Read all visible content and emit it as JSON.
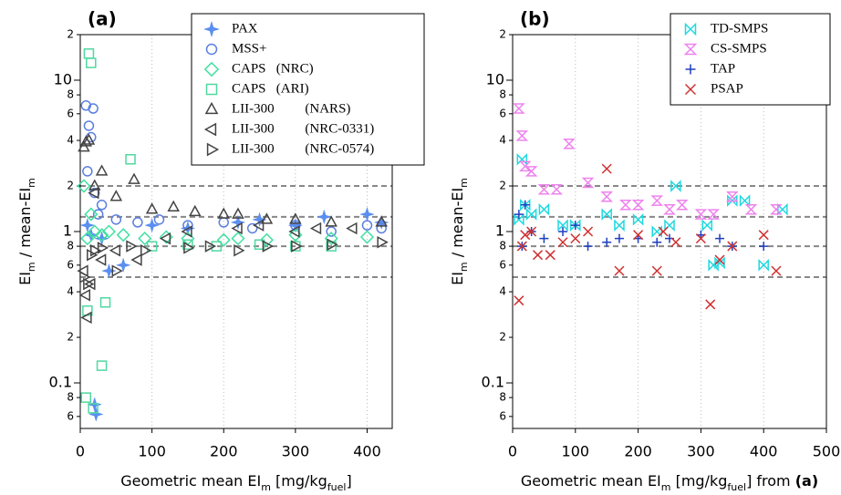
{
  "chart_data": [
    {
      "type": "scatter",
      "panel_label": "(a)",
      "log_y": true,
      "legend": "top-right",
      "ylabel": [
        {
          "text": "EI"
        },
        {
          "text": "m",
          "sub": true
        },
        {
          "text": " / mean-EI"
        },
        {
          "text": "m",
          "sub": true
        }
      ],
      "xlabel": [
        {
          "text": "Geometric mean EI"
        },
        {
          "text": "m",
          "sub": true
        },
        {
          "text": " [mg/kg"
        },
        {
          "text": "fuel",
          "sub": true
        },
        {
          "text": "]"
        }
      ],
      "xlim": [
        0,
        435
      ],
      "xticks": [
        0,
        100,
        200,
        300,
        400
      ],
      "ylim": [
        0.05,
        20
      ],
      "yticks": [
        {
          "value": 0.06,
          "label": "6"
        },
        {
          "value": 0.08,
          "label": "8"
        },
        0.1,
        {
          "value": 0.2,
          "label": "2"
        },
        {
          "value": 0.4,
          "label": "4"
        },
        {
          "value": 0.6,
          "label": "6"
        },
        {
          "value": 0.8,
          "label": "8"
        },
        1,
        {
          "value": 2,
          "label": "2"
        },
        {
          "value": 4,
          "label": "4"
        },
        {
          "value": 6,
          "label": "6"
        },
        {
          "value": 8,
          "label": "8"
        },
        10,
        {
          "value": 20,
          "label": "2"
        }
      ],
      "reference_lines": [
        0.5,
        0.8,
        1.25,
        2
      ],
      "series": [
        {
          "name": "PAX",
          "color": "#5a8ef0",
          "marker": "star",
          "x": [
            10,
            15,
            20,
            22,
            30,
            40,
            60,
            100,
            150,
            220,
            250,
            300,
            340,
            400,
            420
          ],
          "values": [
            1.1,
            0.95,
            0.072,
            0.062,
            0.9,
            0.55,
            0.6,
            1.1,
            1.05,
            1.15,
            1.2,
            1.1,
            1.25,
            1.3,
            1.15
          ]
        },
        {
          "name": "MSS+",
          "color": "#5b7fe0",
          "marker": "circle",
          "x": [
            8,
            10,
            12,
            15,
            18,
            20,
            25,
            30,
            50,
            80,
            110,
            150,
            200,
            240,
            300,
            350,
            400,
            420
          ],
          "values": [
            6.8,
            2.5,
            5,
            4.2,
            6.5,
            1.8,
            1.3,
            1.5,
            1.2,
            1.15,
            1.2,
            1.1,
            1.15,
            1.05,
            1.1,
            1.0,
            1.1,
            1.05
          ]
        },
        {
          "name": "CAPS   (NRC)",
          "color": "#40e0a0",
          "marker": "diamond",
          "x": [
            5,
            10,
            15,
            20,
            30,
            40,
            60,
            90,
            120,
            150,
            200,
            220,
            260,
            300,
            350,
            400
          ],
          "values": [
            2.0,
            0.9,
            1.3,
            1.0,
            0.95,
            1.0,
            0.95,
            0.9,
            0.92,
            0.9,
            0.88,
            0.9,
            0.88,
            0.95,
            0.9,
            0.92
          ]
        },
        {
          "name": "CAPS   (ARI)",
          "color": "#50d8a0",
          "marker": "square",
          "x": [
            8,
            10,
            12,
            15,
            18,
            30,
            35,
            70,
            100,
            150,
            190,
            250,
            300,
            350
          ],
          "values": [
            0.08,
            0.3,
            15,
            13,
            0.068,
            0.13,
            0.34,
            3.0,
            0.8,
            0.82,
            0.8,
            0.82,
            0.8,
            0.8
          ]
        },
        {
          "name": "LII-300         (NARS)",
          "color": "#444444",
          "marker": "tri-up",
          "x": [
            5,
            8,
            12,
            20,
            30,
            50,
            75,
            100,
            130,
            160,
            200,
            220,
            260,
            300,
            350,
            420
          ],
          "values": [
            3.6,
            3.9,
            4.0,
            2.0,
            2.5,
            1.7,
            2.2,
            1.4,
            1.45,
            1.35,
            1.3,
            1.3,
            1.2,
            1.2,
            1.15,
            1.15
          ]
        },
        {
          "name": "LII-300         (NRC-0331)",
          "color": "#444444",
          "marker": "tri-left",
          "x": [
            5,
            8,
            10,
            15,
            20,
            30,
            50,
            80,
            120,
            150,
            220,
            250,
            300,
            330,
            380
          ],
          "values": [
            0.55,
            0.38,
            0.27,
            0.45,
            1.8,
            0.65,
            0.75,
            0.65,
            0.9,
            1.0,
            1.05,
            1.1,
            1.0,
            1.05,
            1.05
          ]
        },
        {
          "name": "LII-300         (NRC-0574)",
          "color": "#444444",
          "marker": "tri-right",
          "x": [
            5,
            10,
            15,
            20,
            30,
            50,
            70,
            90,
            150,
            180,
            220,
            260,
            300,
            350,
            420
          ],
          "values": [
            0.5,
            0.45,
            0.7,
            0.75,
            0.78,
            0.55,
            0.8,
            0.75,
            0.78,
            0.8,
            0.75,
            0.8,
            0.8,
            0.82,
            0.85
          ]
        }
      ]
    },
    {
      "type": "scatter",
      "panel_label": "(b)",
      "log_y": true,
      "legend": "top-right",
      "ylabel": [
        {
          "text": "EI"
        },
        {
          "text": "m",
          "sub": true
        },
        {
          "text": " / mean-EI"
        },
        {
          "text": "m",
          "sub": true
        }
      ],
      "xlabel": [
        {
          "text": "Geometric mean EI"
        },
        {
          "text": "m",
          "sub": true
        },
        {
          "text": " [mg/kg"
        },
        {
          "text": "fuel",
          "sub": true
        },
        {
          "text": "] from "
        },
        {
          "text": "(a)",
          "bold": true
        }
      ],
      "xlim": [
        0,
        500
      ],
      "xticks": [
        0,
        100,
        200,
        300,
        400,
        500
      ],
      "ylim": [
        0.05,
        20
      ],
      "yticks": [
        {
          "value": 0.06,
          "label": "6"
        },
        {
          "value": 0.08,
          "label": "8"
        },
        0.1,
        {
          "value": 0.2,
          "label": "2"
        },
        {
          "value": 0.4,
          "label": "4"
        },
        {
          "value": 0.6,
          "label": "6"
        },
        {
          "value": 0.8,
          "label": "8"
        },
        1,
        {
          "value": 2,
          "label": "2"
        },
        {
          "value": 4,
          "label": "4"
        },
        {
          "value": 6,
          "label": "6"
        },
        {
          "value": 8,
          "label": "8"
        },
        10,
        {
          "value": 20,
          "label": "2"
        }
      ],
      "reference_lines": [
        0.5,
        0.8,
        1.25,
        2
      ],
      "series": [
        {
          "name": "TD-SMPS",
          "color": "#20d8e0",
          "marker": "bowtie",
          "x": [
            10,
            15,
            20,
            30,
            50,
            80,
            100,
            150,
            170,
            200,
            230,
            250,
            260,
            310,
            320,
            330,
            350,
            370,
            400,
            430
          ],
          "values": [
            1.2,
            3.0,
            1.5,
            1.3,
            1.4,
            1.1,
            1.1,
            1.3,
            1.1,
            1.2,
            1.0,
            1.1,
            2.0,
            1.1,
            0.6,
            0.62,
            1.6,
            1.6,
            0.6,
            1.4
          ]
        },
        {
          "name": "CS-SMPS",
          "color": "#ee82ee",
          "marker": "hourglass",
          "x": [
            10,
            15,
            20,
            30,
            50,
            70,
            90,
            120,
            150,
            180,
            200,
            230,
            250,
            270,
            300,
            320,
            350,
            380,
            420
          ],
          "values": [
            6.5,
            4.3,
            2.7,
            2.5,
            1.9,
            1.9,
            3.8,
            2.1,
            1.7,
            1.5,
            1.5,
            1.6,
            1.4,
            1.5,
            1.3,
            1.3,
            1.7,
            1.4,
            1.4
          ]
        },
        {
          "name": "TAP",
          "color": "#1f3fbf",
          "marker": "plus",
          "x": [
            10,
            15,
            20,
            30,
            50,
            80,
            100,
            120,
            150,
            170,
            200,
            230,
            250,
            300,
            330,
            350,
            400
          ],
          "values": [
            1.3,
            0.8,
            1.5,
            1.0,
            0.9,
            1.0,
            1.1,
            0.8,
            0.85,
            0.9,
            0.9,
            0.85,
            0.9,
            0.95,
            0.9,
            0.8,
            0.8
          ]
        },
        {
          "name": "PSAP",
          "color": "#d03030",
          "marker": "cross",
          "x": [
            10,
            15,
            20,
            30,
            40,
            60,
            80,
            100,
            120,
            150,
            170,
            200,
            230,
            240,
            260,
            300,
            315,
            330,
            350,
            400,
            420
          ],
          "values": [
            0.35,
            0.8,
            0.95,
            1.0,
            0.7,
            0.7,
            0.85,
            0.9,
            1.0,
            2.6,
            0.55,
            0.95,
            0.55,
            1.0,
            0.85,
            0.9,
            0.33,
            0.65,
            0.8,
            0.95,
            0.55
          ]
        }
      ]
    }
  ]
}
